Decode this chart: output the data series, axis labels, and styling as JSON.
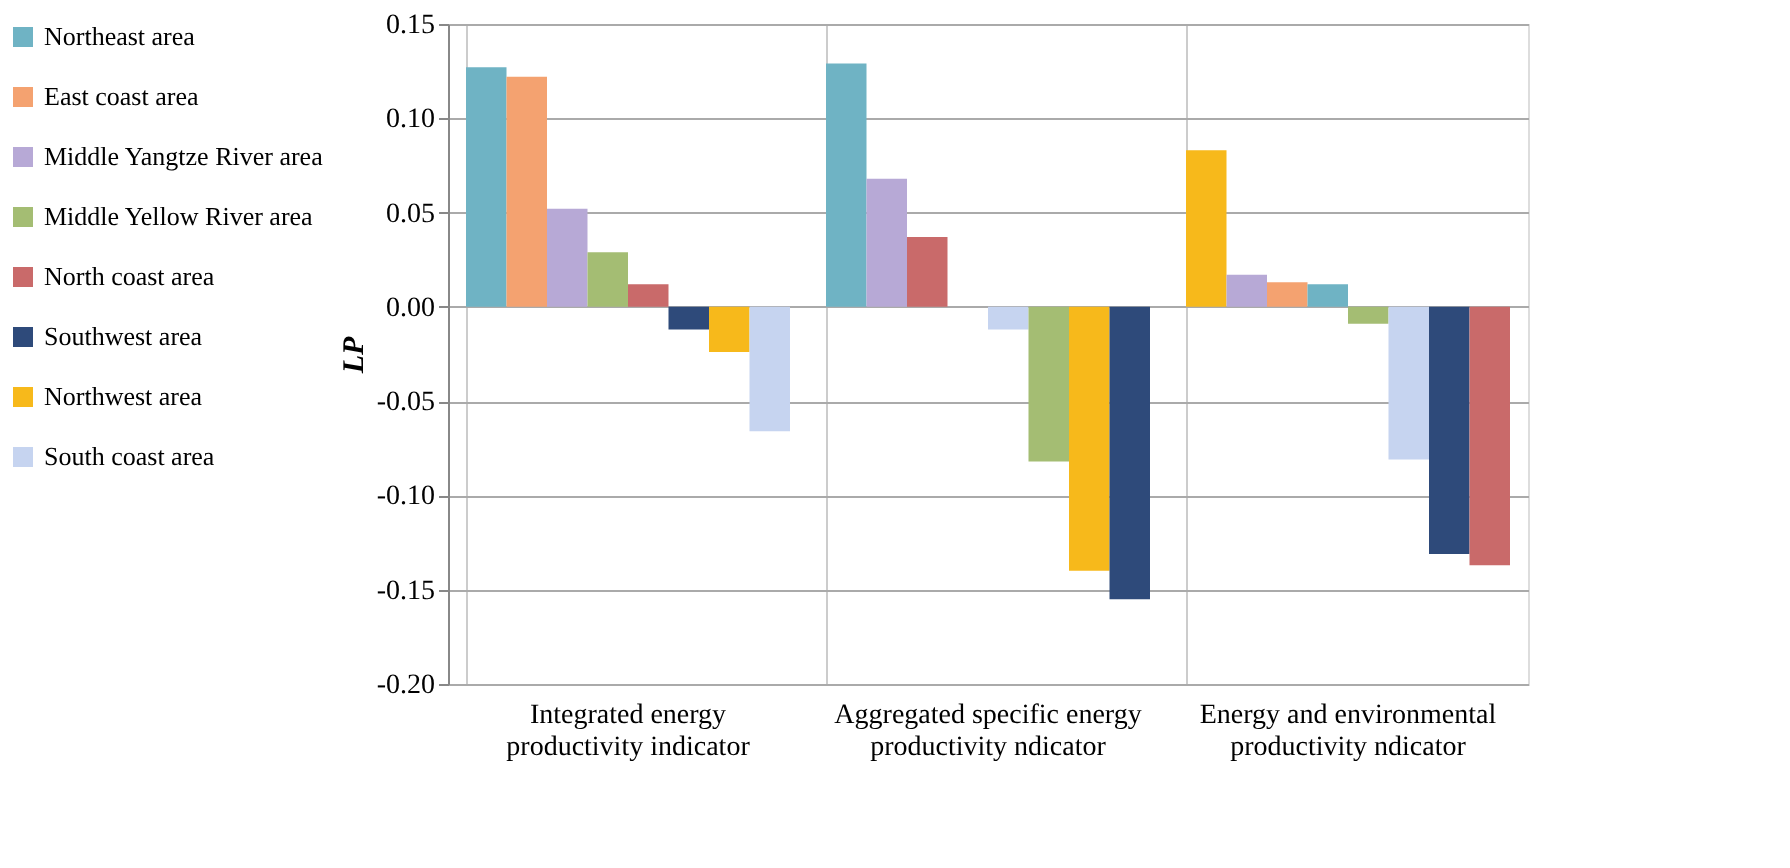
{
  "chart_data": {
    "type": "bar",
    "categories": [
      "Integrated energy productivity indicator",
      "Aggregated specific energy productivity ndicator",
      "Energy and environmental productivity ndicator"
    ],
    "ylabel": "LP",
    "ylim": [
      -0.2,
      0.15
    ],
    "yticks": [
      {
        "value": -0.2,
        "label": "-0.20"
      },
      {
        "value": -0.15,
        "label": "-0.15"
      },
      {
        "value": -0.1,
        "label": "-0.10"
      },
      {
        "value": -0.05,
        "label": "-0.05"
      },
      {
        "value": 0,
        "label": "0.00"
      },
      {
        "value": 0.05,
        "label": "0.05"
      },
      {
        "value": 0.1,
        "label": "0.10"
      },
      {
        "value": 0.15,
        "label": "0.15"
      }
    ],
    "grid": true,
    "legend": "left",
    "series": [
      {
        "name": "Northeast area",
        "color": "#6fb3c4",
        "values": [
          0.127,
          0.129,
          0.012
        ]
      },
      {
        "name": "East coast area",
        "color": "#f4a270",
        "values": [
          0.122,
          0,
          0.013
        ]
      },
      {
        "name": "Middle Yangtze River area",
        "color": "#b7a9d6",
        "values": [
          0.052,
          0.068,
          0.017
        ]
      },
      {
        "name": "Middle Yellow River area",
        "color": "#a4bd73",
        "values": [
          0.029,
          -0.082,
          -0.009
        ]
      },
      {
        "name": "North coast area",
        "color": "#c96a6a",
        "values": [
          0.012,
          0.037,
          -0.137
        ]
      },
      {
        "name": "Southwest area",
        "color": "#2e4a7a",
        "values": [
          -0.012,
          -0.155,
          -0.131
        ]
      },
      {
        "name": "Northwest area",
        "color": "#f7b91b",
        "values": [
          -0.024,
          -0.14,
          0.083
        ]
      },
      {
        "name": "South coast area",
        "color": "#c6d4f0",
        "values": [
          -0.066,
          -0.012,
          -0.081
        ]
      }
    ]
  }
}
